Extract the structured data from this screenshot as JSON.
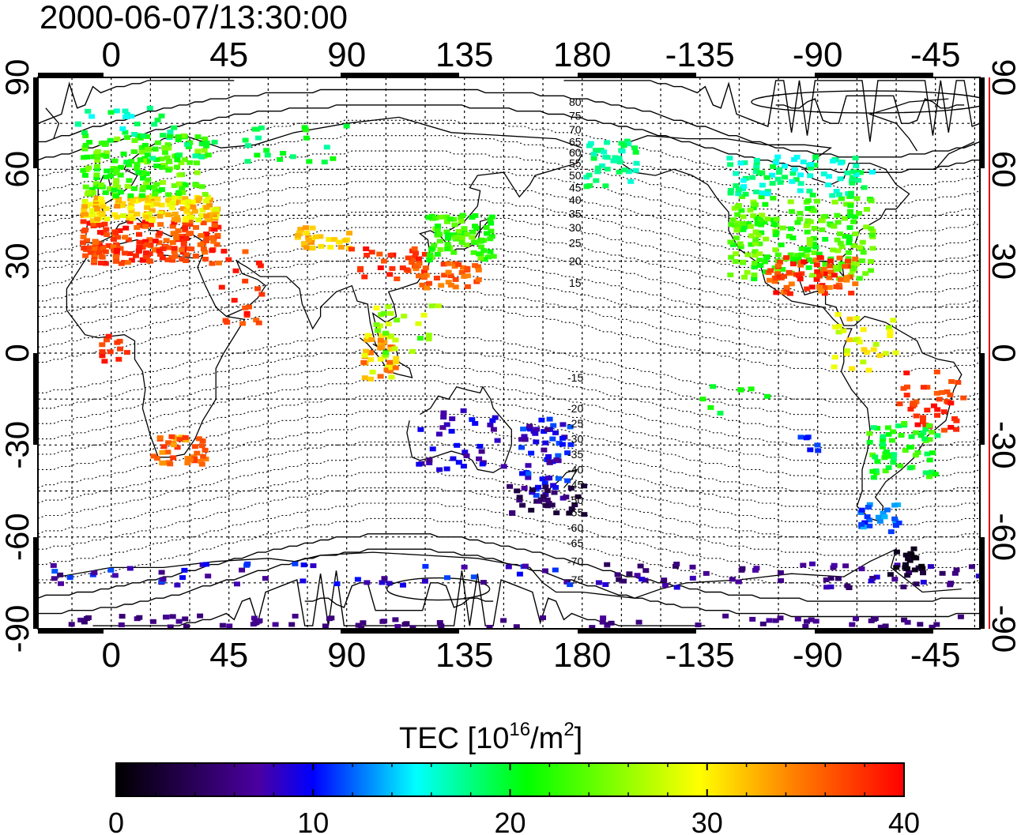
{
  "header": {
    "timestamp": "2000-06-07/13:30:00"
  },
  "map": {
    "lon_ticks_top": [
      "0",
      "45",
      "90",
      "135",
      "180",
      "-135",
      "-90",
      "-45"
    ],
    "lon_ticks_bottom": [
      "0",
      "45",
      "90",
      "135",
      "180",
      "-135",
      "-90",
      "-45"
    ],
    "lat_ticks_left": [
      "90",
      "60",
      "30",
      "0",
      "-30",
      "-60",
      "-90"
    ],
    "lat_ticks_right": [
      "90",
      "60",
      "30",
      "0",
      "-30",
      "-60",
      "-90"
    ],
    "contour_labels_north": [
      "80",
      "75",
      "70",
      "65",
      "60",
      "55",
      "50",
      "45",
      "40",
      "35",
      "30",
      "25",
      "20",
      "15"
    ],
    "contour_labels_south": [
      "-15",
      "-20",
      "-25",
      "-30",
      "-35",
      "-40",
      "-45",
      "-50",
      "-55",
      "-60",
      "-65",
      "-70",
      "-75"
    ],
    "grid": "on",
    "colors": {
      "right_axis_line": "#e00000"
    }
  },
  "colorbar": {
    "title_prefix": "TEC  [10",
    "title_exp": "16",
    "title_mid": "/m",
    "title_exp2": "2",
    "title_suffix": "]",
    "ticks": [
      "0",
      "10",
      "20",
      "30",
      "40"
    ],
    "range": [
      0,
      40
    ],
    "colormap": [
      "#000000",
      "#4b00a0",
      "#0000ff",
      "#00ffff",
      "#00ff00",
      "#ffff00",
      "#ff8000",
      "#ff0000"
    ]
  }
}
